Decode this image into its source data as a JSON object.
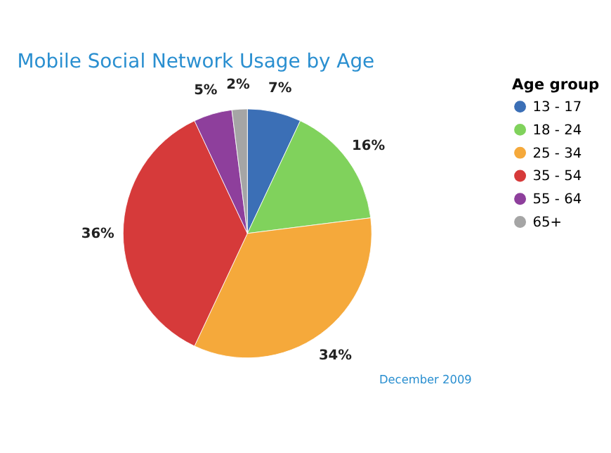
{
  "chart_data": {
    "type": "pie",
    "title": "Mobile Social Network Usage by Age",
    "legend_title": "Age group",
    "legend": "right",
    "categories": [
      "13 - 17",
      "18 - 24",
      "25 - 34",
      "35 - 54",
      "55 - 64",
      "65+"
    ],
    "values": [
      7,
      16,
      34,
      36,
      5,
      2
    ],
    "colors": [
      "#3b6fb6",
      "#80d25c",
      "#f5a93b",
      "#d63a3a",
      "#8e3f9c",
      "#a5a5a5"
    ],
    "value_labels": [
      "7%",
      "16%",
      "34%",
      "36%",
      "5%",
      "2%"
    ],
    "annotations": [
      "December 2009"
    ]
  }
}
